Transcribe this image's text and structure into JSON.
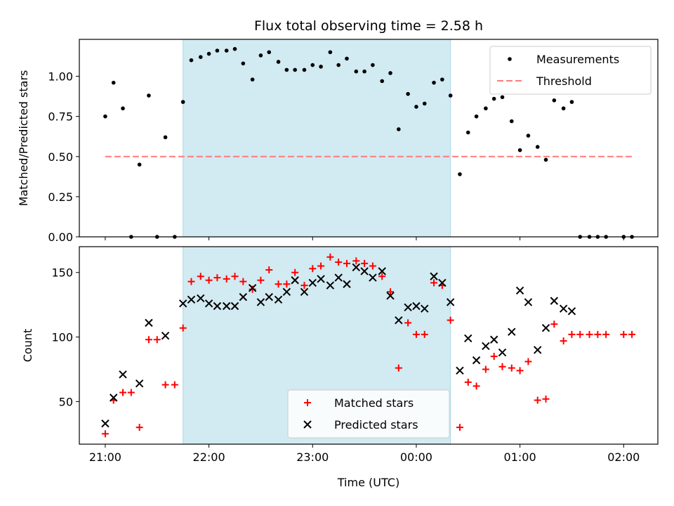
{
  "title": "Flux total observing time = 2.58 h",
  "chart_data": [
    {
      "type": "scatter",
      "panel": "top",
      "ylabel": "Matched/Predicted stars",
      "ylim": [
        0,
        1.23
      ],
      "yticks": [
        0.0,
        0.25,
        0.5,
        0.75,
        1.0
      ],
      "ytick_labels": [
        "0.00",
        "0.25",
        "0.50",
        "0.75",
        "1.00"
      ],
      "xlim_hours": [
        20.75,
        26.33
      ],
      "shaded_region_hours": [
        21.75,
        24.33
      ],
      "legend_position": "top-right",
      "series": [
        {
          "name": "Measurements",
          "marker": "dot",
          "color": "#000000",
          "x_hours": [
            21.0,
            21.08,
            21.17,
            21.25,
            21.33,
            21.42,
            21.5,
            21.58,
            21.67,
            21.75,
            21.83,
            21.92,
            22.0,
            22.08,
            22.17,
            22.25,
            22.33,
            22.42,
            22.5,
            22.58,
            22.67,
            22.75,
            22.83,
            22.92,
            23.0,
            23.08,
            23.17,
            23.25,
            23.33,
            23.42,
            23.5,
            23.58,
            23.67,
            23.75,
            23.83,
            23.92,
            24.0,
            24.08,
            24.17,
            24.25,
            24.33,
            24.42,
            24.5,
            24.58,
            24.67,
            24.75,
            24.83,
            24.92,
            25.0,
            25.08,
            25.17,
            25.25,
            25.33,
            25.42,
            25.5,
            25.58,
            25.67,
            25.75,
            25.83,
            26.0,
            26.08
          ],
          "y": [
            0.75,
            0.96,
            0.8,
            0.0,
            0.45,
            0.88,
            0.0,
            0.62,
            0.0,
            0.84,
            1.1,
            1.12,
            1.14,
            1.16,
            1.16,
            1.17,
            1.08,
            0.98,
            1.13,
            1.15,
            1.09,
            1.04,
            1.04,
            1.04,
            1.07,
            1.06,
            1.15,
            1.07,
            1.11,
            1.03,
            1.03,
            1.07,
            0.97,
            1.02,
            0.67,
            0.89,
            0.81,
            0.83,
            0.96,
            0.98,
            0.88,
            0.39,
            0.65,
            0.75,
            0.8,
            0.86,
            0.87,
            0.72,
            0.54,
            0.63,
            0.56,
            0.48,
            0.85,
            0.8,
            0.84,
            0.0,
            0.0,
            0.0,
            0.0,
            0.0,
            0.0
          ]
        },
        {
          "name": "Threshold",
          "line": "dashed",
          "color": "#ff7b7b",
          "x_hours": [
            21.0,
            26.08
          ],
          "y": [
            0.5,
            0.5
          ]
        }
      ]
    },
    {
      "type": "scatter",
      "panel": "bottom",
      "xlabel": "Time (UTC)",
      "ylabel": "Count",
      "ylim": [
        17,
        170
      ],
      "yticks": [
        50,
        100,
        150
      ],
      "xlim_hours": [
        20.75,
        26.33
      ],
      "xticks_hours": [
        21,
        22,
        23,
        24,
        25,
        26
      ],
      "xtick_labels": [
        "21:00",
        "22:00",
        "23:00",
        "00:00",
        "01:00",
        "02:00"
      ],
      "shaded_region_hours": [
        21.75,
        24.33
      ],
      "legend_position": "bottom-center",
      "series": [
        {
          "name": "Matched stars",
          "marker": "plus",
          "color": "#ff0000",
          "x_hours": [
            21.0,
            21.08,
            21.17,
            21.25,
            21.33,
            21.42,
            21.5,
            21.58,
            21.67,
            21.75,
            21.83,
            21.92,
            22.0,
            22.08,
            22.17,
            22.25,
            22.33,
            22.42,
            22.5,
            22.58,
            22.67,
            22.75,
            22.83,
            22.92,
            23.0,
            23.08,
            23.17,
            23.25,
            23.33,
            23.42,
            23.5,
            23.58,
            23.67,
            23.75,
            23.83,
            23.92,
            24.0,
            24.08,
            24.17,
            24.25,
            24.33,
            24.42,
            24.5,
            24.58,
            24.67,
            24.75,
            24.83,
            24.92,
            25.0,
            25.08,
            25.17,
            25.25,
            25.33,
            25.42,
            25.5,
            25.58,
            25.67,
            25.75,
            25.83,
            26.0,
            26.08
          ],
          "y": [
            25,
            51,
            57,
            57,
            30,
            98,
            98,
            63,
            63,
            107,
            143,
            147,
            144,
            146,
            145,
            147,
            143,
            137,
            144,
            152,
            141,
            141,
            150,
            140,
            153,
            155,
            162,
            158,
            157,
            159,
            157,
            155,
            147,
            135,
            76,
            111,
            102,
            102,
            142,
            140,
            113,
            30,
            65,
            62,
            75,
            85,
            77,
            76,
            74,
            81,
            51,
            52,
            110,
            97,
            102,
            102,
            102,
            102,
            102,
            102,
            102
          ]
        },
        {
          "name": "Predicted stars",
          "marker": "x",
          "color": "#000000",
          "x_hours": [
            21.0,
            21.08,
            21.17,
            21.33,
            21.42,
            21.58,
            21.75,
            21.83,
            21.92,
            22.0,
            22.08,
            22.17,
            22.25,
            22.33,
            22.42,
            22.5,
            22.58,
            22.67,
            22.75,
            22.83,
            22.92,
            23.0,
            23.08,
            23.17,
            23.25,
            23.33,
            23.42,
            23.5,
            23.58,
            23.67,
            23.75,
            23.83,
            23.92,
            24.0,
            24.08,
            24.17,
            24.25,
            24.33,
            24.42,
            24.5,
            24.58,
            24.67,
            24.75,
            24.83,
            24.92,
            25.0,
            25.08,
            25.17,
            25.25,
            25.33,
            25.42,
            25.5
          ],
          "y": [
            33,
            53,
            71,
            64,
            111,
            101,
            126,
            129,
            130,
            126,
            124,
            124,
            124,
            131,
            138,
            127,
            131,
            129,
            135,
            144,
            135,
            142,
            145,
            140,
            146,
            141,
            154,
            151,
            146,
            151,
            132,
            113,
            123,
            124,
            122,
            147,
            142,
            127,
            74,
            99,
            82,
            93,
            98,
            88,
            104,
            136,
            127,
            90,
            107,
            128,
            122,
            120
          ]
        }
      ]
    }
  ]
}
